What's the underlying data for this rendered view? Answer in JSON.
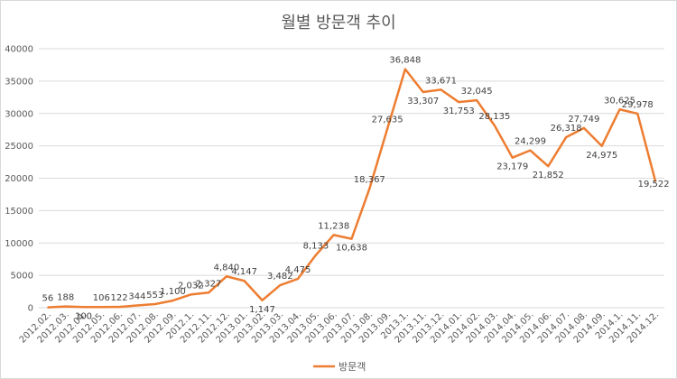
{
  "chart_data": {
    "type": "line",
    "title": "월별 방문객 추이",
    "xlabel": "",
    "ylabel": "",
    "ylim": [
      0,
      40000
    ],
    "y_ticks": [
      0,
      5000,
      10000,
      15000,
      20000,
      25000,
      30000,
      35000,
      40000
    ],
    "grid": "horizontal",
    "legend_position": "bottom",
    "colors": {
      "series": "#ed7d31",
      "grid": "#d9d9d9",
      "text": "#595959"
    },
    "categories": [
      "2012.02.",
      "2012.03.",
      "2012.04.",
      "2012.05.",
      "2012.06.",
      "2012.07.",
      "2012.08.",
      "2012.09.",
      "2012.1.",
      "2012.11.",
      "2012.12.",
      "2013.01.",
      "2013.02.",
      "2013.03.",
      "2013.04.",
      "2013.05.",
      "2013.06.",
      "2013.07.",
      "2013.08.",
      "2013.09.",
      "2013.1.",
      "2013.11.",
      "2013.12.",
      "2014.01.",
      "2014.02.",
      "2014.03.",
      "2014.04.",
      "2014.05.",
      "2014.06.",
      "2014.07.",
      "2014.08.",
      "2014.09.",
      "2014.1.",
      "2014.11.",
      "2014.12."
    ],
    "series": [
      {
        "name": "방문객",
        "values": [
          56,
          188,
          100,
          106,
          122,
          344,
          553,
          1100,
          2032,
          2327,
          4840,
          4147,
          1147,
          3482,
          4475,
          8133,
          11238,
          10638,
          18367,
          27635,
          36848,
          33307,
          33671,
          31753,
          32045,
          28135,
          23179,
          24299,
          21852,
          26318,
          27749,
          24975,
          30625,
          29978,
          19522
        ],
        "labels": [
          "56",
          "188",
          "100",
          "106",
          "122",
          "344",
          "553",
          "1,100",
          "2,032",
          "2,327",
          "4,840",
          "4,147",
          "1,147",
          "3,482",
          "4,475",
          "8,133",
          "11,238",
          "10,638",
          "18,367",
          "27,635",
          "36,848",
          "33,307",
          "33,671",
          "31,753",
          "32,045",
          "28,135",
          "23,179",
          "24,299",
          "21,852",
          "26,318",
          "27,749",
          "24,975",
          "30,625",
          "29,978",
          "19,522"
        ]
      }
    ]
  }
}
